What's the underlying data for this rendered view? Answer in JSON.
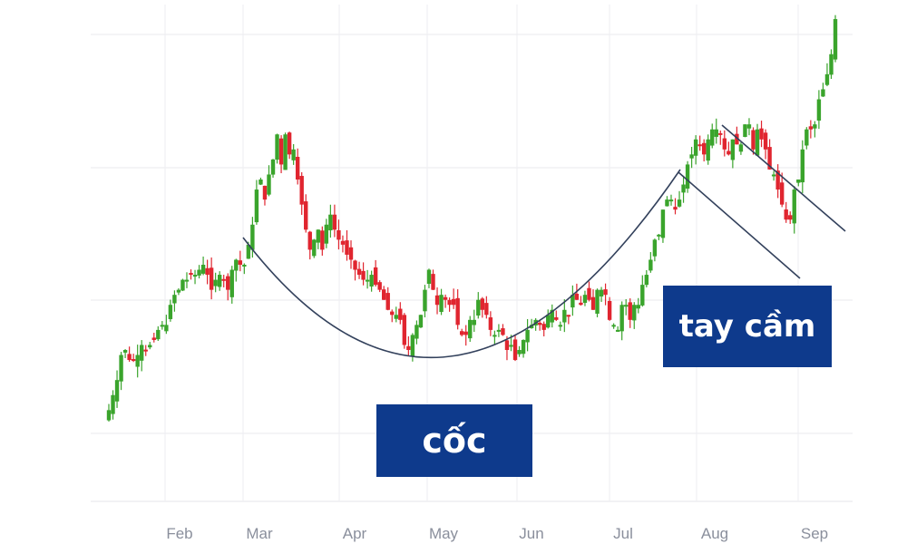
{
  "chart_data": {
    "type": "candlestick",
    "x_tick_labels": [
      "Feb",
      "Mar",
      "Apr",
      "May",
      "Jun",
      "Jul",
      "Aug",
      "Sep"
    ],
    "grid": true,
    "colors": {
      "up": "#3aa42c",
      "down": "#e0252f",
      "grid": "#e8e8ec",
      "annotation_line": "#33415c",
      "callout_bg": "#0e3a8c"
    },
    "annotations": {
      "cup_label": "cốc",
      "handle_label": "tay cầm"
    },
    "note": "y axis has no printed tick labels; closes given in relative price units",
    "closes": [
      60,
      63,
      66,
      71,
      72,
      70,
      70,
      71,
      73,
      72,
      73,
      74,
      76,
      77,
      77,
      81,
      83,
      84,
      86,
      86,
      87,
      87,
      88,
      89,
      87,
      84,
      86,
      87,
      86,
      84,
      88,
      90,
      89,
      89,
      93,
      97,
      104,
      106,
      102,
      107,
      110,
      115,
      109,
      115,
      111,
      112,
      106,
      101,
      96,
      92,
      94,
      96,
      92,
      97,
      99,
      96,
      94,
      93,
      91,
      90,
      88,
      87,
      86,
      86,
      87,
      85,
      84,
      82,
      80,
      79,
      79,
      78,
      73,
      72,
      75,
      77,
      79,
      84,
      88,
      84,
      81,
      83,
      82,
      81,
      81,
      77,
      75,
      75,
      78,
      78,
      82,
      80,
      79,
      76,
      75,
      76,
      75,
      72,
      73,
      70,
      72,
      74,
      76,
      77,
      78,
      77,
      76,
      79,
      80,
      78,
      77,
      80,
      79,
      83,
      82,
      81,
      83,
      82,
      80,
      84,
      84,
      83,
      78,
      77,
      76,
      81,
      81,
      78,
      81,
      81,
      85,
      87,
      90,
      94,
      95,
      100,
      102,
      102,
      100,
      102,
      105,
      109,
      111,
      114,
      113,
      111,
      114,
      116,
      116,
      115,
      112,
      111,
      114,
      113,
      113,
      117,
      117,
      112,
      116,
      114,
      112,
      108,
      107,
      104,
      101,
      98,
      98,
      104,
      106,
      112,
      116,
      116,
      117,
      122,
      124,
      127,
      131,
      138
    ]
  }
}
